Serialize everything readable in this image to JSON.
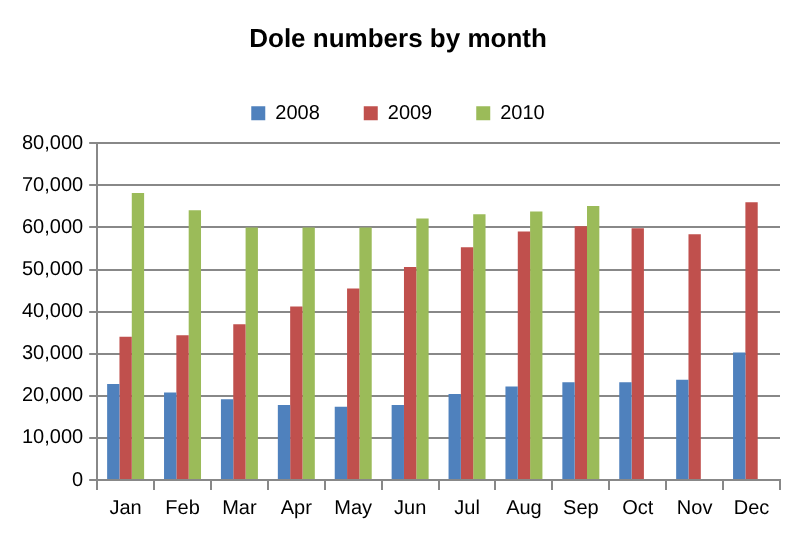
{
  "chart_data": {
    "type": "bar",
    "title": "Dole numbers by month",
    "categories": [
      "Jan",
      "Feb",
      "Mar",
      "Apr",
      "May",
      "Jun",
      "Jul",
      "Aug",
      "Sep",
      "Oct",
      "Nov",
      "Dec"
    ],
    "series": [
      {
        "name": "2008",
        "color": "#4f81bd",
        "values": [
          22800,
          20800,
          19200,
          17800,
          17400,
          17800,
          20400,
          22200,
          23200,
          23200,
          23800,
          30300
        ]
      },
      {
        "name": "2009",
        "color": "#c0504d",
        "values": [
          34000,
          34400,
          37000,
          41200,
          45500,
          50600,
          55300,
          59000,
          60300,
          59800,
          58400,
          66000
        ]
      },
      {
        "name": "2010",
        "color": "#9bbb59",
        "values": [
          68200,
          64100,
          60000,
          60000,
          60000,
          62100,
          63100,
          63800,
          65100,
          null,
          null,
          null
        ]
      }
    ],
    "ylim": [
      0,
      80000
    ],
    "yticks": [
      {
        "value": 0,
        "label": "0"
      },
      {
        "value": 10000,
        "label": "10,000"
      },
      {
        "value": 20000,
        "label": "20,000"
      },
      {
        "value": 30000,
        "label": "30,000"
      },
      {
        "value": 40000,
        "label": "40,000"
      },
      {
        "value": 50000,
        "label": "50,000"
      },
      {
        "value": 60000,
        "label": "60,000"
      },
      {
        "value": 70000,
        "label": "70,000"
      },
      {
        "value": 80000,
        "label": "80,000"
      }
    ],
    "grid": "y",
    "legend": "top"
  }
}
